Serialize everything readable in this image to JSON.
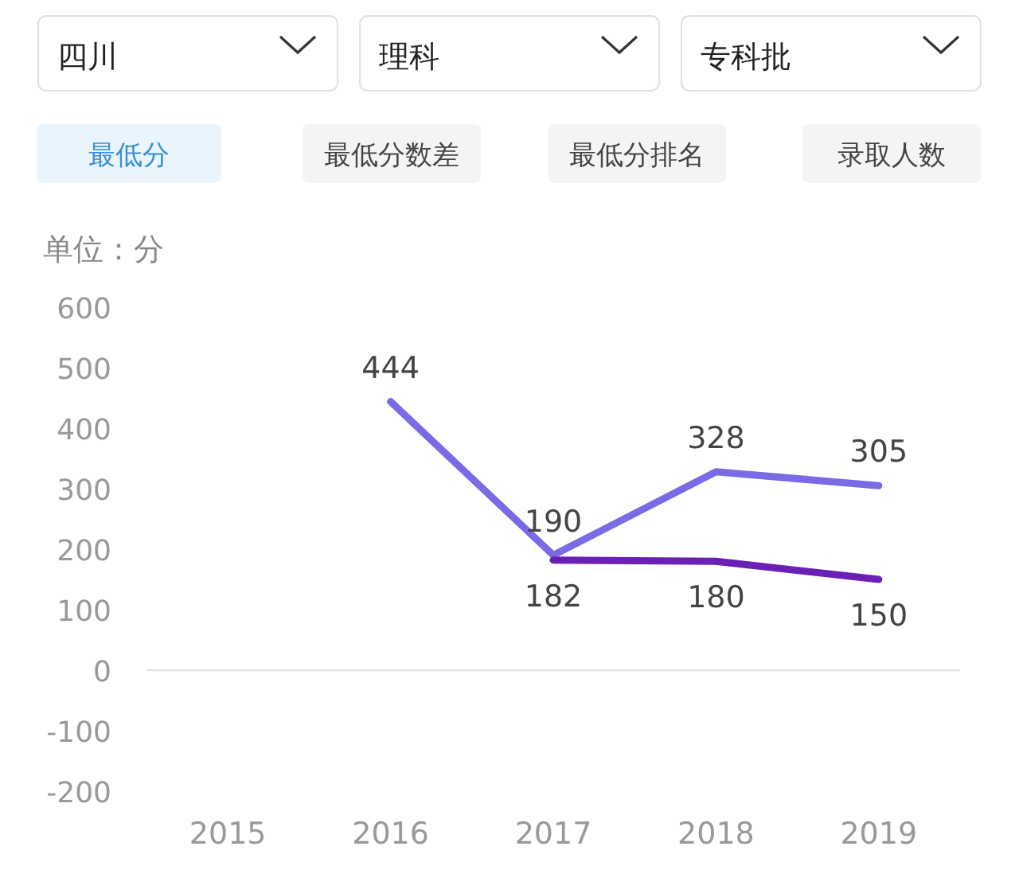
{
  "chart_data": {
    "type": "line",
    "ylabel": "单位：分",
    "annotations": [
      "四川",
      "理科",
      "专科批",
      "最低分",
      "最低分数差",
      "最低分排名",
      "录取人数"
    ],
    "categories": [
      "2015",
      "2016",
      "2017",
      "2018",
      "2019"
    ],
    "series": [
      {
        "color": "#7b6ae6",
        "values": [
          null,
          444,
          190,
          328,
          305
        ]
      },
      {
        "color": "#6a1fb5",
        "values": [
          null,
          null,
          182,
          180,
          150
        ]
      }
    ],
    "ylim": [
      -200,
      600
    ],
    "yticks": [
      -200,
      -100,
      0,
      100,
      200,
      300,
      400,
      500,
      600
    ],
    "data_labels": true,
    "marker": "none",
    "line_style": "solid"
  }
}
